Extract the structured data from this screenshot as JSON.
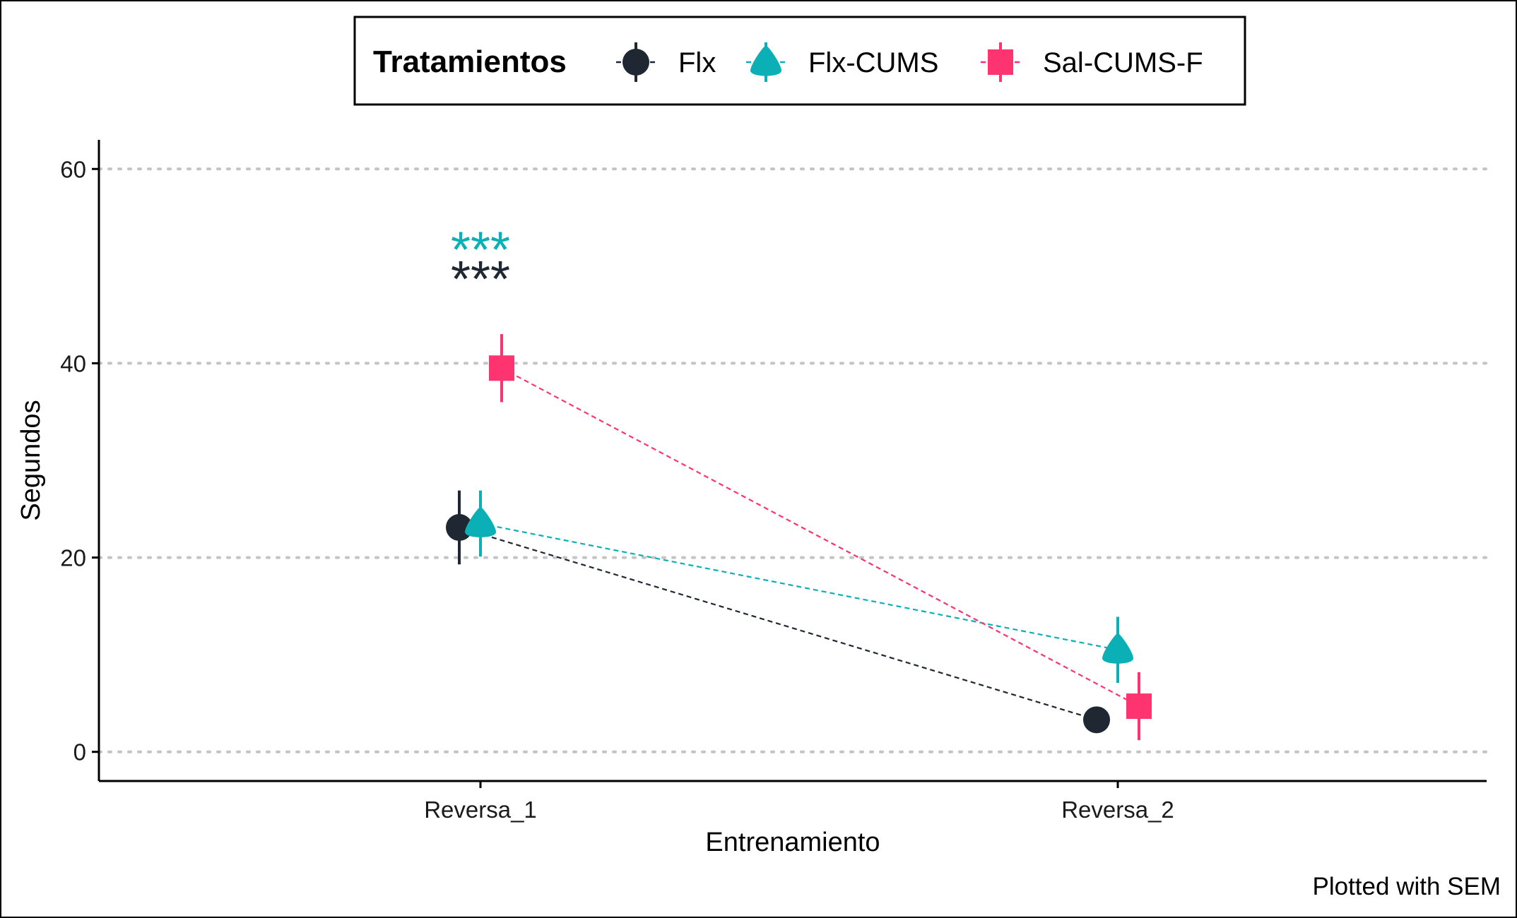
{
  "chart_data": {
    "type": "line",
    "xlabel": "Entrenamiento",
    "ylabel": "Segundos",
    "caption": "Plotted with SEM",
    "categories": [
      "Reversa_1",
      "Reversa_2"
    ],
    "ylim": [
      -3,
      63
    ],
    "yticks": [
      0,
      20,
      40,
      60
    ],
    "grid": {
      "y_major": true,
      "style": "dotted"
    },
    "legend": {
      "title": "Tratamientos",
      "position": "top"
    },
    "series": [
      {
        "name": "Flx",
        "color": "#1f2732",
        "marker": "circle",
        "values": [
          23.1,
          3.3
        ],
        "sem": [
          3.8,
          0
        ]
      },
      {
        "name": "Flx-CUMS",
        "color": "#0ab0b5",
        "marker": "triangle",
        "values": [
          23.5,
          10.5
        ],
        "sem": [
          3.4,
          3.4
        ]
      },
      {
        "name": "Sal-CUMS-F",
        "color": "#fe3470",
        "marker": "square",
        "values": [
          39.5,
          4.7
        ],
        "sem": [
          3.5,
          3.5
        ]
      }
    ],
    "annotations": [
      {
        "text": "***",
        "category": "Reversa_1",
        "y": 53.5,
        "color": "#0ab0b5"
      },
      {
        "text": "***",
        "category": "Reversa_1",
        "y": 50.5,
        "color": "#1f2732"
      }
    ]
  }
}
